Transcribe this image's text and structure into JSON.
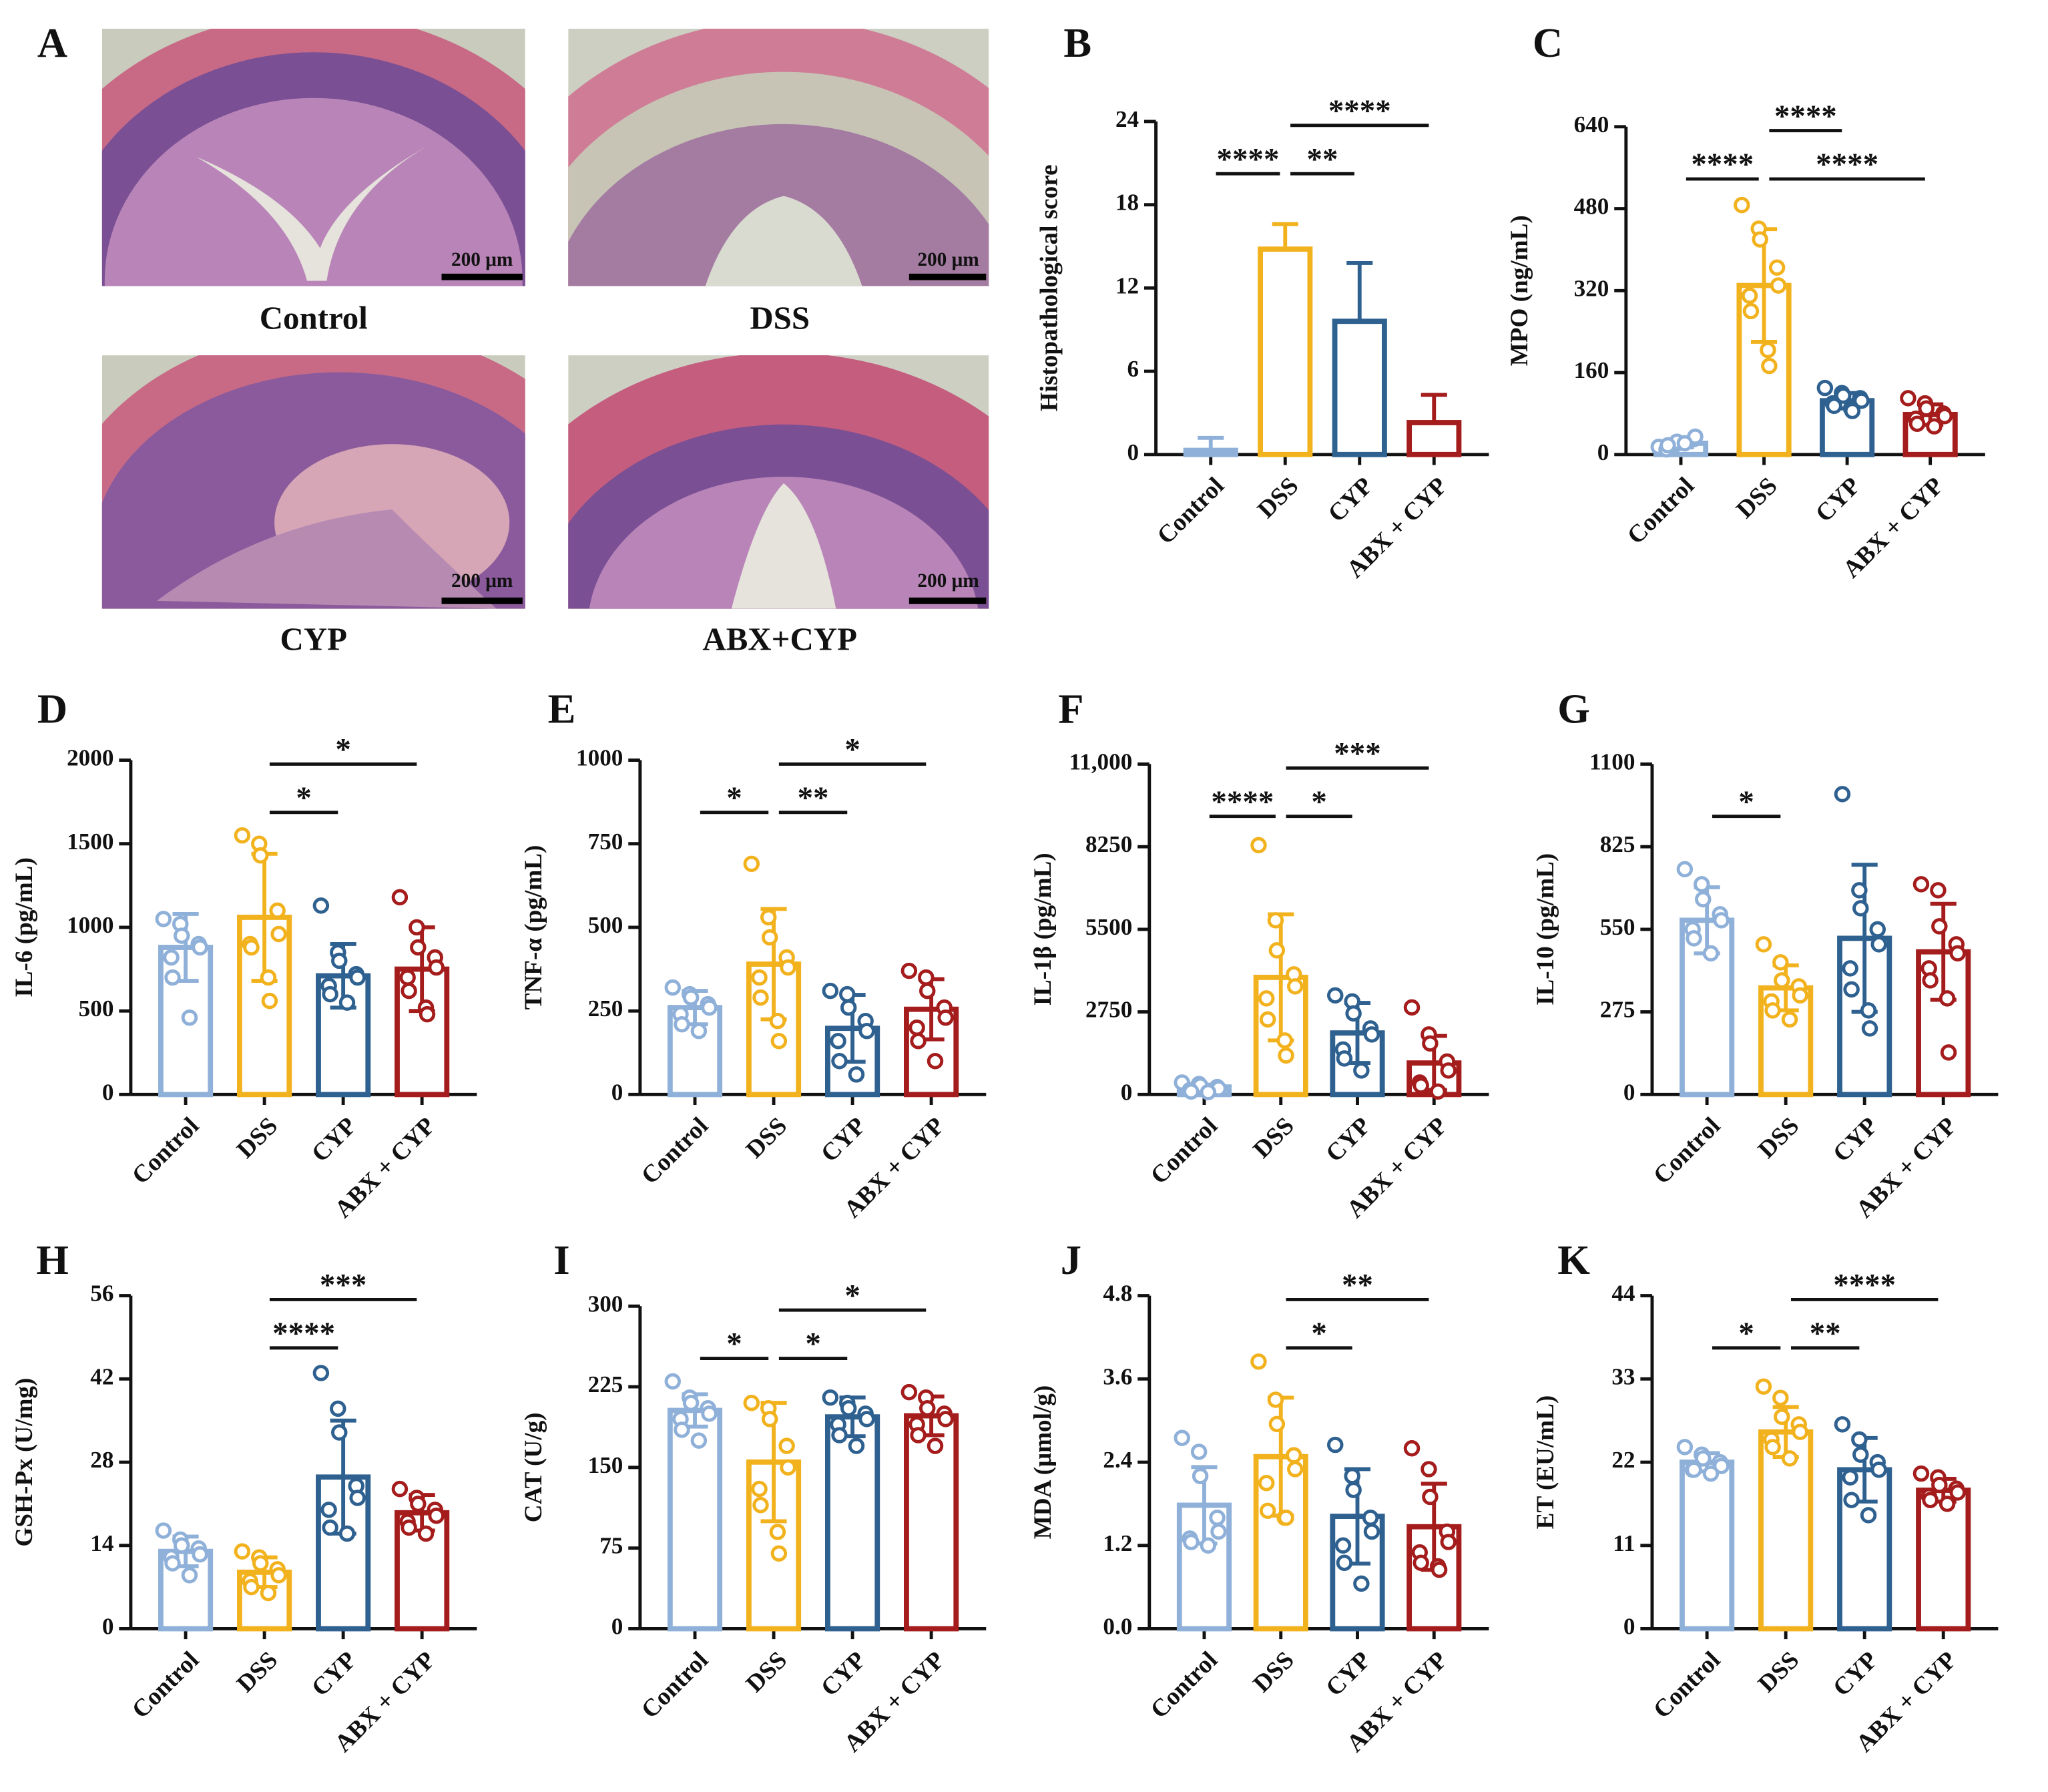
{
  "panel_a": {
    "label": "A",
    "images": [
      {
        "caption": "Control",
        "scale_bar": "200 μm"
      },
      {
        "caption": "DSS",
        "scale_bar": "200 μm"
      },
      {
        "caption": "CYP",
        "scale_bar": "200 μm"
      },
      {
        "caption": "ABX+CYP",
        "scale_bar": "200 μm"
      }
    ]
  },
  "chart_data": [
    {
      "type": "bar",
      "panel": "B",
      "ylabel": "Histopathological score",
      "categories": [
        "Control",
        "DSS",
        "CYP",
        "ABX + CYP"
      ],
      "colors": [
        "#8fb0d8",
        "#f2b21e",
        "#2e6090",
        "#a51c1c"
      ],
      "values": [
        0.3,
        14.8,
        9.6,
        2.3
      ],
      "errors": [
        0.9,
        1.8,
        4.2,
        2.0
      ],
      "error_bars": "upper",
      "ylim": [
        0,
        24
      ],
      "yticks": [
        0,
        6,
        12,
        18,
        24
      ],
      "comparisons": [
        {
          "groups": [
            "Control",
            "DSS"
          ],
          "label": "****"
        },
        {
          "groups": [
            "DSS",
            "CYP"
          ],
          "label": "**"
        },
        {
          "groups": [
            "DSS",
            "ABX + CYP"
          ],
          "label": "****"
        }
      ]
    },
    {
      "type": "bar",
      "panel": "C",
      "ylabel": "MPO (ng/mL)",
      "categories": [
        "Control",
        "DSS",
        "CYP",
        "ABX + CYP"
      ],
      "colors": [
        "#8fb0d8",
        "#f2b21e",
        "#2e6090",
        "#a51c1c"
      ],
      "values": [
        22,
        330,
        105,
        78
      ],
      "errors": [
        8,
        110,
        15,
        20
      ],
      "error_bars": "both",
      "points": [
        [
          15,
          20,
          25,
          30,
          35,
          10,
          18,
          22
        ],
        [
          487,
          441,
          420,
          365,
          330,
          310,
          280,
          204,
          173
        ],
        [
          130,
          120,
          115,
          110,
          105,
          100,
          95,
          90,
          85
        ],
        [
          110,
          100,
          90,
          80,
          75,
          70,
          60,
          55
        ]
      ],
      "ylim": [
        0,
        640
      ],
      "yticks": [
        0,
        160,
        320,
        480,
        640
      ],
      "comparisons": [
        {
          "groups": [
            "Control",
            "DSS"
          ],
          "label": "****"
        },
        {
          "groups": [
            "DSS",
            "ABX + CYP"
          ],
          "label": "****"
        },
        {
          "groups": [
            "DSS",
            "CYP"
          ],
          "label": "****"
        }
      ]
    },
    {
      "type": "bar",
      "panel": "D",
      "ylabel": "IL-6 (pg/mL)",
      "categories": [
        "Control",
        "DSS",
        "CYP",
        "ABX + CYP"
      ],
      "colors": [
        "#8fb0d8",
        "#f2b21e",
        "#2e6090",
        "#a51c1c"
      ],
      "values": [
        880,
        1060,
        710,
        750
      ],
      "errors": [
        200,
        380,
        190,
        250
      ],
      "error_bars": "both",
      "points": [
        [
          1050,
          1020,
          950,
          900,
          880,
          820,
          700,
          460
        ],
        [
          1550,
          1500,
          1430,
          1100,
          960,
          900,
          880,
          700,
          560
        ],
        [
          1130,
          850,
          800,
          720,
          700,
          650,
          600,
          550
        ],
        [
          1180,
          1000,
          880,
          820,
          760,
          700,
          620,
          520,
          480
        ]
      ],
      "ylim": [
        0,
        2000
      ],
      "yticks": [
        0,
        500,
        1000,
        1500,
        2000
      ],
      "comparisons": [
        {
          "groups": [
            "DSS",
            "CYP"
          ],
          "label": "*"
        },
        {
          "groups": [
            "DSS",
            "ABX + CYP"
          ],
          "label": "*"
        }
      ]
    },
    {
      "type": "bar",
      "panel": "E",
      "ylabel": "TNF-α (pg/mL)",
      "categories": [
        "Control",
        "DSS",
        "CYP",
        "ABX + CYP"
      ],
      "colors": [
        "#8fb0d8",
        "#f2b21e",
        "#2e6090",
        "#a51c1c"
      ],
      "values": [
        260,
        390,
        198,
        255
      ],
      "errors": [
        50,
        165,
        100,
        90
      ],
      "error_bars": "both",
      "points": [
        [
          320,
          300,
          290,
          270,
          260,
          240,
          210,
          190
        ],
        [
          690,
          530,
          470,
          410,
          380,
          350,
          290,
          220,
          160
        ],
        [
          310,
          300,
          260,
          220,
          190,
          160,
          100,
          60
        ],
        [
          370,
          350,
          310,
          260,
          230,
          200,
          160,
          100
        ]
      ],
      "ylim": [
        0,
        1000
      ],
      "yticks": [
        0,
        250,
        500,
        750,
        1000
      ],
      "comparisons": [
        {
          "groups": [
            "Control",
            "DSS"
          ],
          "label": "*"
        },
        {
          "groups": [
            "DSS",
            "CYP"
          ],
          "label": "**"
        },
        {
          "groups": [
            "DSS",
            "ABX + CYP"
          ],
          "label": "*"
        }
      ]
    },
    {
      "type": "bar",
      "panel": "F",
      "ylabel": "IL-1β (pg/mL)",
      "categories": [
        "Control",
        "DSS",
        "CYP",
        "ABX + CYP"
      ],
      "colors": [
        "#8fb0d8",
        "#f2b21e",
        "#2e6090",
        "#a51c1c"
      ],
      "values": [
        250,
        3900,
        2050,
        1050
      ],
      "errors": [
        80,
        2100,
        1000,
        900
      ],
      "error_bars": "both",
      "points": [
        [
          400,
          350,
          300,
          250,
          200,
          150,
          100,
          80
        ],
        [
          8300,
          5800,
          4800,
          4000,
          3600,
          3200,
          2500,
          1800,
          1300
        ],
        [
          3300,
          3100,
          2700,
          2200,
          2000,
          1500,
          1200,
          800
        ],
        [
          2900,
          2000,
          1700,
          1100,
          800,
          400,
          300,
          100
        ]
      ],
      "ylim": [
        0,
        11000
      ],
      "yticks": [
        0,
        2750,
        5500,
        8250,
        {
          "value": 11000,
          "label": "11,000"
        }
      ],
      "comparisons": [
        {
          "groups": [
            "Control",
            "DSS"
          ],
          "label": "****"
        },
        {
          "groups": [
            "DSS",
            "CYP"
          ],
          "label": "*"
        },
        {
          "groups": [
            "DSS",
            "ABX + CYP"
          ],
          "label": "***"
        }
      ]
    },
    {
      "type": "bar",
      "panel": "G",
      "ylabel": "IL-10 (pg/mL)",
      "categories": [
        "Control",
        "DSS",
        "CYP",
        "ABX + CYP"
      ],
      "colors": [
        "#8fb0d8",
        "#f2b21e",
        "#2e6090",
        "#a51c1c"
      ],
      "values": [
        580,
        355,
        520,
        475
      ],
      "errors": [
        110,
        75,
        245,
        160
      ],
      "error_bars": "both",
      "points": [
        [
          750,
          700,
          650,
          600,
          580,
          550,
          520,
          470
        ],
        [
          500,
          440,
          380,
          360,
          330,
          310,
          280,
          250
        ],
        [
          1000,
          680,
          620,
          550,
          500,
          420,
          350,
          280,
          220
        ],
        [
          700,
          680,
          560,
          500,
          470,
          420,
          380,
          320,
          140
        ]
      ],
      "ylim": [
        0,
        1100
      ],
      "yticks": [
        0,
        275,
        550,
        825,
        1100
      ],
      "comparisons": [
        {
          "groups": [
            "Control",
            "DSS"
          ],
          "label": "*"
        }
      ]
    },
    {
      "type": "bar",
      "panel": "H",
      "ylabel": "GSH-Px (U/mg)",
      "categories": [
        "Control",
        "DSS",
        "CYP",
        "ABX + CYP"
      ],
      "colors": [
        "#8fb0d8",
        "#f2b21e",
        "#2e6090",
        "#a51c1c"
      ],
      "values": [
        13,
        9.5,
        25.5,
        19.5
      ],
      "errors": [
        2.5,
        2.5,
        9.5,
        3
      ],
      "error_bars": "both",
      "points": [
        [
          16.5,
          15,
          14,
          13.5,
          12.5,
          12,
          11,
          9
        ],
        [
          13,
          12,
          11,
          10,
          9,
          8,
          7,
          6
        ],
        [
          43,
          37,
          33,
          24,
          22,
          20,
          17,
          16
        ],
        [
          23.5,
          22,
          21,
          20,
          19,
          18,
          17,
          16
        ]
      ],
      "ylim": [
        0,
        56
      ],
      "yticks": [
        0,
        14,
        28,
        42,
        56
      ],
      "comparisons": [
        {
          "groups": [
            "DSS",
            "CYP"
          ],
          "label": "****"
        },
        {
          "groups": [
            "DSS",
            "ABX + CYP"
          ],
          "label": "***"
        }
      ]
    },
    {
      "type": "bar",
      "panel": "I",
      "ylabel": "CAT (U/g)",
      "categories": [
        "Control",
        "DSS",
        "CYP",
        "ABX + CYP"
      ],
      "colors": [
        "#8fb0d8",
        "#f2b21e",
        "#2e6090",
        "#a51c1c"
      ],
      "values": [
        203,
        155,
        197,
        198
      ],
      "errors": [
        15,
        55,
        18,
        18
      ],
      "error_bars": "both",
      "points": [
        [
          230,
          215,
          210,
          205,
          200,
          195,
          185,
          175
        ],
        [
          210,
          205,
          195,
          170,
          150,
          130,
          115,
          90,
          70
        ],
        [
          215,
          210,
          205,
          200,
          195,
          190,
          180,
          170
        ],
        [
          220,
          215,
          205,
          200,
          195,
          190,
          180,
          170
        ]
      ],
      "ylim": [
        0,
        300
      ],
      "yticks": [
        0,
        75,
        150,
        225,
        300
      ],
      "comparisons": [
        {
          "groups": [
            "Control",
            "DSS"
          ],
          "label": "*"
        },
        {
          "groups": [
            "DSS",
            "CYP"
          ],
          "label": "*"
        },
        {
          "groups": [
            "DSS",
            "ABX + CYP"
          ],
          "label": "*"
        }
      ]
    },
    {
      "type": "bar",
      "panel": "J",
      "ylabel": "MDA (μmol/g)",
      "categories": [
        "Control",
        "DSS",
        "CYP",
        "ABX + CYP"
      ],
      "colors": [
        "#8fb0d8",
        "#f2b21e",
        "#2e6090",
        "#a51c1c"
      ],
      "values": [
        1.78,
        2.48,
        1.62,
        1.47
      ],
      "errors": [
        0.55,
        0.85,
        0.68,
        0.62
      ],
      "error_bars": "both",
      "points": [
        [
          2.75,
          2.55,
          2.2,
          1.6,
          1.4,
          1.3,
          1.25,
          1.2
        ],
        [
          3.85,
          3.3,
          2.95,
          2.5,
          2.3,
          2.1,
          1.7,
          1.6,
          1.6
        ],
        [
          2.65,
          2.2,
          2.0,
          1.6,
          1.4,
          1.2,
          0.95,
          0.65
        ],
        [
          2.6,
          2.3,
          1.9,
          1.4,
          1.25,
          1.1,
          0.95,
          0.9,
          0.85
        ]
      ],
      "ylim": [
        0,
        4.8
      ],
      "yticks": [
        {
          "value": 0,
          "label": "0.0"
        },
        1.2,
        2.4,
        3.6,
        4.8
      ],
      "comparisons": [
        {
          "groups": [
            "DSS",
            "CYP"
          ],
          "label": "*"
        },
        {
          "groups": [
            "DSS",
            "ABX + CYP"
          ],
          "label": "**"
        }
      ]
    },
    {
      "type": "bar",
      "panel": "K",
      "ylabel": "ET (EU/mL)",
      "categories": [
        "Control",
        "DSS",
        "CYP",
        "ABX + CYP"
      ],
      "colors": [
        "#8fb0d8",
        "#f2b21e",
        "#2e6090",
        "#a51c1c"
      ],
      "values": [
        22,
        26,
        21,
        18.3
      ],
      "errors": [
        1.2,
        3.3,
        4.2,
        1.5
      ],
      "error_bars": "both",
      "points": [
        [
          24,
          23,
          22.5,
          22,
          21.5,
          21,
          21,
          20.5
        ],
        [
          32,
          30.5,
          28,
          27,
          26,
          25,
          24,
          22.5
        ],
        [
          27,
          25,
          23,
          22,
          21,
          20,
          17,
          15
        ],
        [
          20.5,
          20,
          19,
          18.5,
          18,
          17.5,
          17,
          16.5
        ]
      ],
      "ylim": [
        0,
        44
      ],
      "yticks": [
        0,
        11,
        22,
        33,
        44
      ],
      "comparisons": [
        {
          "groups": [
            "Control",
            "DSS"
          ],
          "label": "*"
        },
        {
          "groups": [
            "DSS",
            "CYP"
          ],
          "label": "**"
        },
        {
          "groups": [
            "DSS",
            "ABX + CYP"
          ],
          "label": "****"
        }
      ]
    }
  ]
}
